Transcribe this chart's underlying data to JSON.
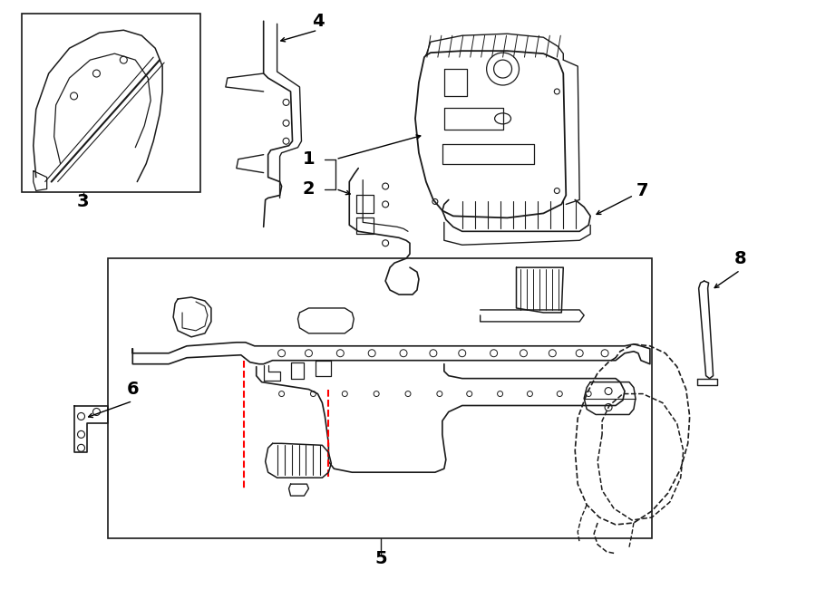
{
  "bg_color": "#ffffff",
  "line_color": "#1a1a1a",
  "red_dash_color": "#ff0000",
  "label_color": "#000000",
  "fig_width": 9.0,
  "fig_height": 6.61,
  "dpi": 100
}
